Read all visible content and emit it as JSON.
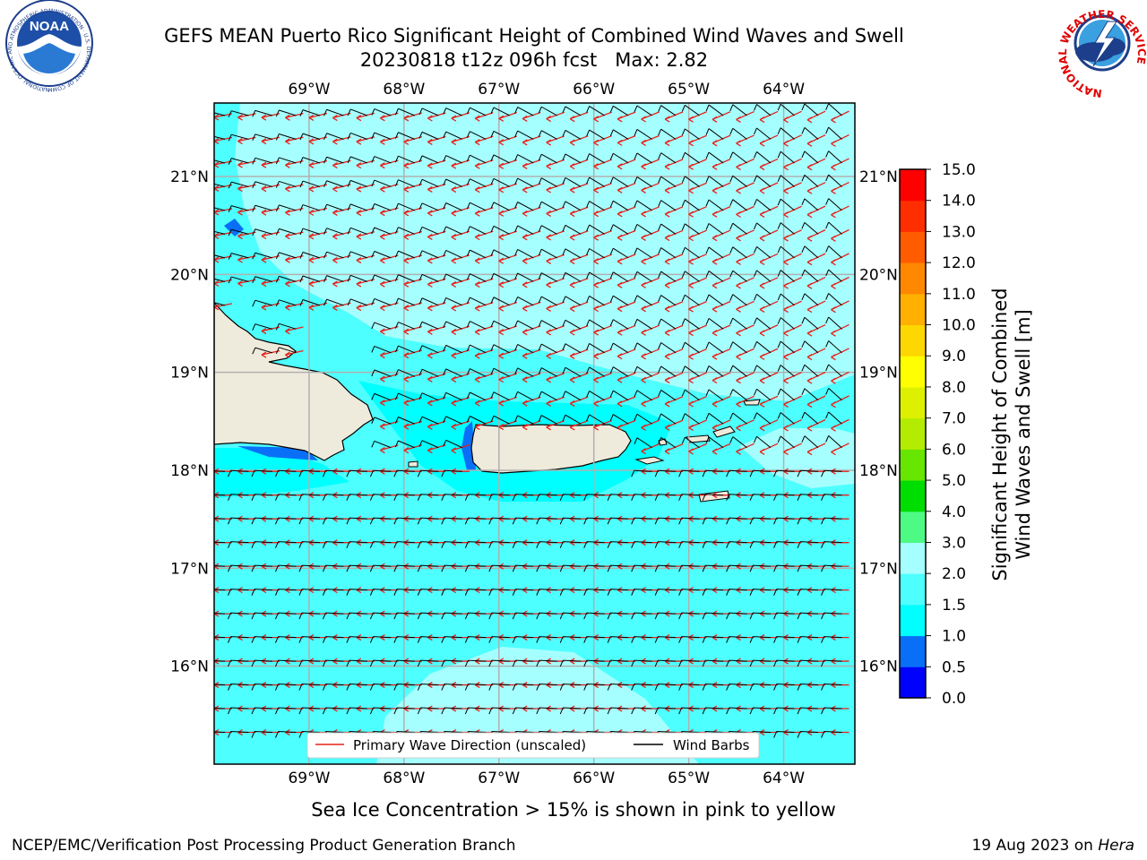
{
  "header": {
    "title_line1": "GEFS MEAN Puerto Rico Significant Height of Combined Wind Waves and Swell",
    "title_line2": "20230818 t12z 096h fcst   Max: 2.82"
  },
  "logos": {
    "left_text": "NOAA",
    "left_ring_text": "NATIONAL OCEANIC AND ATMOSPHERIC ADMINISTRATION · U.S. DEPARTMENT OF COMMERCE",
    "right_ring_text": "NATIONAL WEATHER SERVICE"
  },
  "map": {
    "lon_labels": [
      "69°W",
      "68°W",
      "67°W",
      "66°W",
      "65°W",
      "64°W"
    ],
    "lat_labels": [
      "21°N",
      "20°N",
      "19°N",
      "18°N",
      "17°N",
      "16°N"
    ],
    "lon_range": [
      -70.0,
      -63.25
    ],
    "lat_range": [
      15.0,
      21.75
    ],
    "colors": {
      "land": "#efebdc",
      "grid": "#b0b0b0",
      "wave_arrow": "#e8201a",
      "wind_barb": "#000000"
    }
  },
  "legend": {
    "wave_label": "Primary Wave Direction (unscaled)",
    "barb_label": "Wind Barbs"
  },
  "colorbar": {
    "label_line1": "Significant Height of Combined",
    "label_line2": "Wind Waves and Swell [m]",
    "ticks": [
      "0.0",
      "0.5",
      "1.0",
      "1.5",
      "2.0",
      "3.0",
      "4.0",
      "5.0",
      "6.0",
      "7.0",
      "8.0",
      "9.0",
      "10.0",
      "11.0",
      "12.0",
      "13.0",
      "14.0",
      "15.0"
    ],
    "colors": [
      "#0000ff",
      "#0a6ff7",
      "#00ffff",
      "#4dffff",
      "#a6ffff",
      "#4dfa84",
      "#00dd00",
      "#66e600",
      "#b3ec00",
      "#dcf000",
      "#ffff00",
      "#ffd700",
      "#ffb000",
      "#ff8800",
      "#ff5c00",
      "#ff2e00",
      "#ff0000"
    ]
  },
  "footer": {
    "note": "Sea Ice Concentration > 15% is shown in pink to yellow",
    "left": "NCEP/EMC/Verification Post Processing Product Generation Branch",
    "right_prefix": "19 Aug 2023 on ",
    "right_host": "Hera"
  }
}
